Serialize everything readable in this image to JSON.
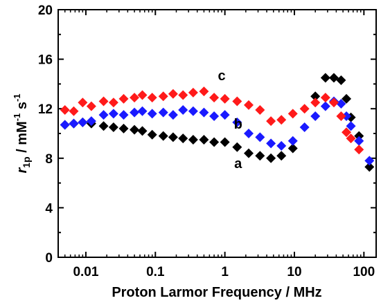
{
  "chart_data": {
    "type": "scatter",
    "x_scale": "log",
    "xlim": [
      0.004,
      150
    ],
    "ylim": [
      0,
      20
    ],
    "x_ticks": [
      0.01,
      0.1,
      1,
      10,
      100
    ],
    "x_tick_labels": [
      "0.01",
      "0.1",
      "1",
      "10",
      "100"
    ],
    "y_ticks": [
      0,
      4,
      8,
      12,
      16,
      20
    ],
    "y_tick_labels": [
      "0",
      "4",
      "8",
      "12",
      "16",
      "20"
    ],
    "xlabel": "Proton Larmor Frequency / MHz",
    "ylabel_parts": [
      "r",
      "1p",
      " / mM",
      "-1",
      " s",
      "-1"
    ],
    "grid": false,
    "legend": "none",
    "marker": "diamond",
    "series": [
      {
        "name": "a",
        "color": "#000000",
        "x": [
          0.005,
          0.0067,
          0.009,
          0.012,
          0.018,
          0.025,
          0.035,
          0.05,
          0.065,
          0.09,
          0.13,
          0.18,
          0.25,
          0.35,
          0.5,
          0.7,
          1.0,
          1.5,
          2.2,
          3.2,
          4.6,
          6.5,
          9.5,
          20,
          28,
          37,
          47,
          56,
          65,
          85,
          120
        ],
        "y": [
          10.7,
          10.8,
          10.9,
          10.8,
          10.6,
          10.5,
          10.4,
          10.3,
          10.2,
          9.9,
          9.8,
          9.7,
          9.6,
          9.5,
          9.5,
          9.3,
          9.3,
          8.9,
          8.4,
          8.2,
          8.0,
          8.2,
          8.8,
          13.0,
          14.5,
          14.5,
          14.3,
          12.8,
          11.3,
          9.8,
          7.3
        ]
      },
      {
        "name": "b",
        "color": "#1a1aff",
        "x": [
          0.005,
          0.0067,
          0.009,
          0.012,
          0.018,
          0.025,
          0.035,
          0.05,
          0.065,
          0.09,
          0.13,
          0.18,
          0.25,
          0.35,
          0.5,
          0.7,
          1.0,
          1.5,
          2.2,
          3.2,
          4.6,
          6.5,
          9.5,
          14,
          20,
          28,
          37,
          47,
          56,
          65,
          85,
          120
        ],
        "y": [
          10.7,
          10.8,
          10.9,
          11.0,
          11.5,
          11.6,
          11.5,
          11.7,
          11.8,
          11.6,
          11.7,
          11.5,
          11.9,
          11.8,
          11.7,
          11.4,
          11.5,
          10.9,
          10.0,
          9.7,
          9.2,
          9.0,
          9.4,
          10.5,
          11.4,
          12.2,
          12.6,
          12.4,
          11.4,
          10.6,
          9.4,
          7.8
        ]
      },
      {
        "name": "c",
        "color": "#ff1a1a",
        "x": [
          0.005,
          0.0067,
          0.009,
          0.012,
          0.018,
          0.025,
          0.035,
          0.05,
          0.065,
          0.09,
          0.13,
          0.18,
          0.25,
          0.35,
          0.5,
          0.7,
          1.0,
          1.5,
          2.2,
          3.2,
          4.6,
          6.5,
          9.5,
          14,
          20,
          28,
          37,
          47,
          56,
          65,
          85
        ],
        "y": [
          11.9,
          11.8,
          12.5,
          12.2,
          12.6,
          12.5,
          12.8,
          12.9,
          13.1,
          12.9,
          13.0,
          13.2,
          13.1,
          13.3,
          13.4,
          12.9,
          12.8,
          12.6,
          12.3,
          11.9,
          11.0,
          11.1,
          11.6,
          12.0,
          12.5,
          12.9,
          12.5,
          11.4,
          10.1,
          9.6,
          8.7
        ]
      }
    ],
    "annotations": [
      {
        "text": "a",
        "x": 1.55,
        "y": 7.2
      },
      {
        "text": "b",
        "x": 1.55,
        "y": 10.4
      },
      {
        "text": "c",
        "x": 0.9,
        "y": 14.3
      }
    ]
  }
}
